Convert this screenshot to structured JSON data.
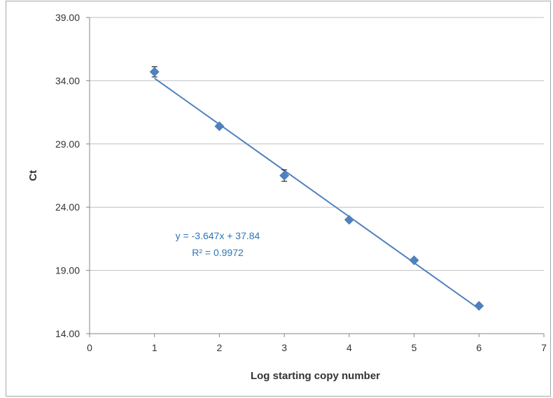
{
  "chart_data": {
    "type": "scatter",
    "title": "",
    "xlabel": "Log starting copy number",
    "ylabel": "Ct",
    "xlim": [
      0,
      7
    ],
    "ylim": [
      14,
      39
    ],
    "xticks": [
      "0",
      "1",
      "2",
      "3",
      "4",
      "5",
      "6",
      "7"
    ],
    "yticks": [
      "14.00",
      "19.00",
      "24.00",
      "29.00",
      "34.00",
      "39.00"
    ],
    "grid": "horizontal",
    "legend": "none",
    "series": [
      {
        "marker": "diamond",
        "color": "#4f81bd",
        "points": [
          {
            "x": 1,
            "y": 34.7,
            "err": 0.4
          },
          {
            "x": 2,
            "y": 30.4,
            "err": 0.15
          },
          {
            "x": 3,
            "y": 26.5,
            "err": 0.45
          },
          {
            "x": 4,
            "y": 23.0,
            "err": 0.1
          },
          {
            "x": 5,
            "y": 19.8,
            "err": 0.1
          },
          {
            "x": 6,
            "y": 16.2,
            "err": 0.1
          }
        ]
      }
    ],
    "trendline": {
      "slope": -3.647,
      "intercept": 37.84,
      "color": "#4f81bd"
    },
    "annotation": {
      "equation": "y = -3.647x + 37.84",
      "r_squared": "R² = 0.9972",
      "color": "#2e75b6"
    }
  }
}
